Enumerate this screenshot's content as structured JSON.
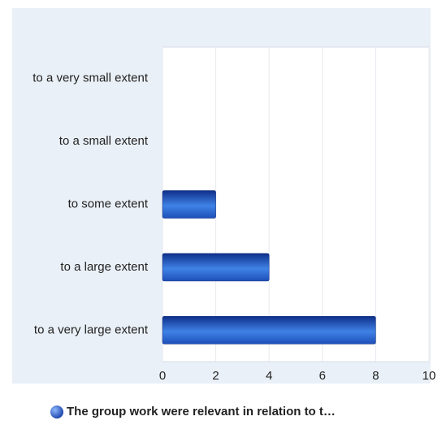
{
  "chart_data": {
    "type": "hbar",
    "categories": [
      "to a very small extent",
      "to a small extent",
      "to some extent",
      "to a large extent",
      "to a very large extent"
    ],
    "series": [
      {
        "name": "The group work were relevant in relation to t…",
        "color": "#2a5fc9",
        "values": [
          0,
          0,
          2,
          4,
          8
        ]
      }
    ],
    "xlim": [
      0,
      10
    ],
    "xticks": [
      0,
      2,
      4,
      6,
      8,
      10
    ],
    "grid": true,
    "legend": "bottom"
  }
}
